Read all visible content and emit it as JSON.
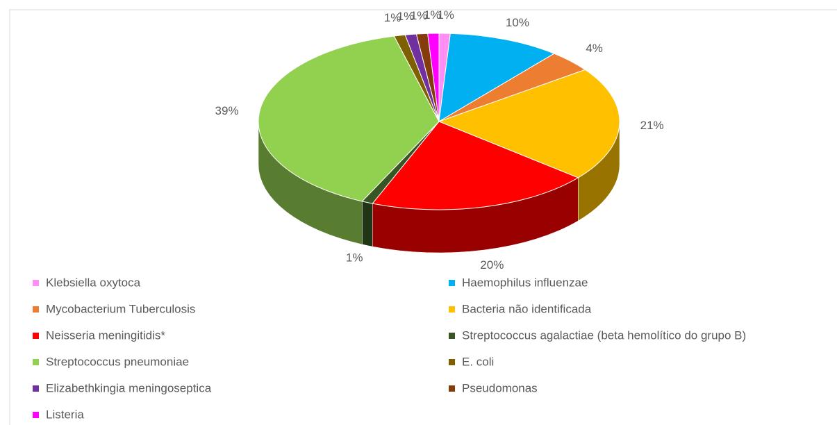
{
  "chart_data": {
    "type": "pie3d",
    "categories": [
      "Klebsiella oxytoca",
      "Haemophilus influenzae",
      "Mycobacterium Tuberculosis",
      "Bacteria não identificada",
      "Neisseria meningitidis*",
      "Streptococcus agalactiae (beta hemolítico do grupo B)",
      "Streptococcus pneumoniae",
      "E. coli",
      "Elizabethkingia meningoseptica",
      "Pseudomonas",
      "Listeria"
    ],
    "values": [
      1,
      10,
      4,
      21,
      20,
      1,
      39,
      1,
      1,
      1,
      1
    ],
    "value_labels": [
      "1%",
      "10%",
      "4%",
      "21%",
      "20%",
      "1%",
      "39%",
      "1%",
      "1%",
      "1%",
      "1%"
    ],
    "colors": [
      "#ff8ff5",
      "#00b0f0",
      "#ed7d31",
      "#ffc000",
      "#ff0000",
      "#375623",
      "#92d050",
      "#7f6000",
      "#7030a0",
      "#843c0c",
      "#ff00ff"
    ],
    "legend": "bottom"
  }
}
